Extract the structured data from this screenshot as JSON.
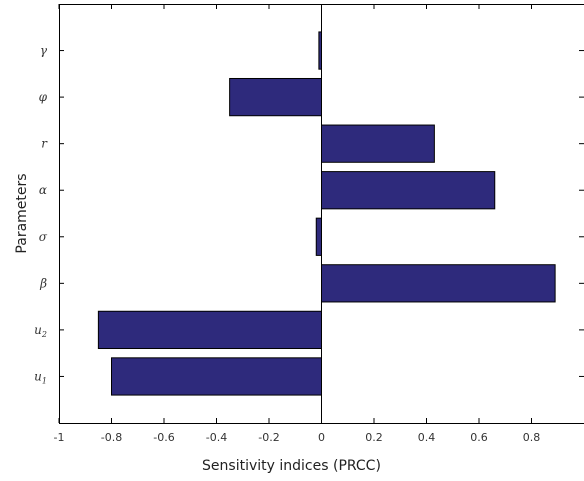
{
  "chart_data": {
    "type": "bar",
    "orientation": "horizontal",
    "categories": [
      "u1",
      "u2",
      "β",
      "σ",
      "α",
      "r",
      "φ",
      "γ"
    ],
    "category_labels": [
      {
        "base": "u",
        "sub": "1"
      },
      {
        "base": "u",
        "sub": "2"
      },
      {
        "base": "β",
        "sub": ""
      },
      {
        "base": "σ",
        "sub": ""
      },
      {
        "base": "α",
        "sub": ""
      },
      {
        "base": "r",
        "sub": ""
      },
      {
        "base": "φ",
        "sub": ""
      },
      {
        "base": "γ",
        "sub": ""
      }
    ],
    "values": [
      -0.8,
      -0.85,
      0.89,
      -0.02,
      0.66,
      0.43,
      -0.35,
      -0.01
    ],
    "xlabel": "Sensitivity indices (PRCC)",
    "ylabel": "Parameters",
    "xlim": [
      -1,
      1
    ],
    "xticks": [
      -1,
      -0.8,
      -0.6,
      -0.4,
      -0.2,
      0,
      0.2,
      0.4,
      0.6,
      0.8
    ],
    "xtick_labels": [
      "-1",
      "-0.8",
      "-0.6",
      "-0.4",
      "-0.2",
      "0",
      "0.2",
      "0.4",
      "0.6",
      "0.8"
    ],
    "grid": false,
    "bar_color": "#2e2a7c",
    "edge_color": "#000000"
  }
}
